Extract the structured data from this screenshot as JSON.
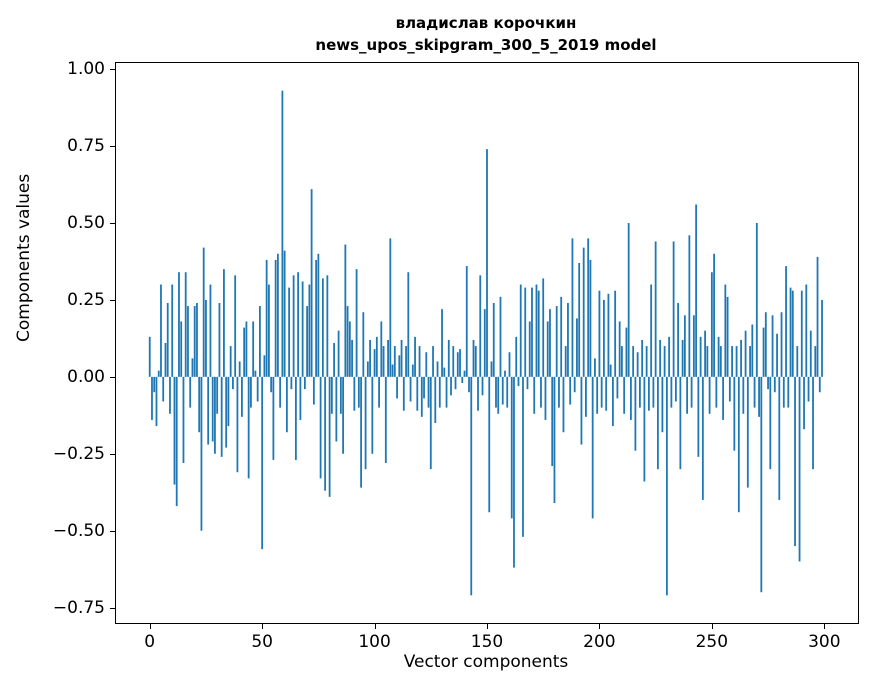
{
  "figure": {
    "title_line1": "владислав корочкин",
    "title_line2": "news_upos_skipgram_300_5_2019 model",
    "xlabel": "Vector components",
    "ylabel": "Components values"
  },
  "chart_data": {
    "type": "bar",
    "title": "владислав корочкин news_upos_skipgram_300_5_2019 model",
    "xlabel": "Vector components",
    "ylabel": "Components values",
    "bar_color": "#1f77b4",
    "grid": false,
    "legend": null,
    "xlim": [
      -15,
      315
    ],
    "ylim": [
      -0.8,
      1.02
    ],
    "xticks": [
      0,
      50,
      100,
      150,
      200,
      250,
      300
    ],
    "xtick_labels": [
      "0",
      "50",
      "100",
      "150",
      "200",
      "250",
      "300"
    ],
    "yticks": [
      1.0,
      0.75,
      0.5,
      0.25,
      0.0,
      -0.25,
      -0.5,
      -0.75
    ],
    "ytick_labels": [
      "1.00",
      "0.75",
      "0.50",
      "0.25",
      "0.00",
      "−0.25",
      "−0.50",
      "−0.75"
    ],
    "x_is_index": true,
    "values": [
      0.13,
      -0.14,
      -0.05,
      -0.16,
      0.02,
      0.3,
      -0.08,
      0.11,
      0.24,
      -0.12,
      0.3,
      -0.35,
      -0.42,
      0.34,
      0.18,
      -0.28,
      0.34,
      0.23,
      -0.1,
      0.06,
      0.23,
      0.24,
      -0.18,
      -0.5,
      0.42,
      0.25,
      -0.22,
      0.3,
      -0.21,
      -0.25,
      -0.12,
      0.24,
      -0.26,
      0.35,
      -0.23,
      -0.16,
      0.1,
      -0.04,
      0.33,
      -0.31,
      0.05,
      -0.13,
      0.16,
      0.18,
      -0.33,
      -0.1,
      0.18,
      0.02,
      -0.08,
      0.23,
      -0.56,
      0.07,
      0.38,
      0.3,
      -0.05,
      -0.27,
      0.38,
      0.4,
      -0.1,
      0.93,
      0.41,
      -0.18,
      0.29,
      -0.04,
      0.33,
      -0.27,
      0.34,
      -0.14,
      0.31,
      -0.04,
      0.23,
      0.3,
      0.61,
      -0.09,
      0.38,
      0.4,
      -0.33,
      0.32,
      -0.37,
      0.33,
      -0.39,
      -0.12,
      0.11,
      -0.21,
      0.15,
      -0.12,
      -0.25,
      0.43,
      0.23,
      0.18,
      0.12,
      -0.11,
      0.35,
      -0.1,
      -0.36,
      0.21,
      -0.3,
      0.05,
      0.12,
      -0.25,
      0.09,
      0.13,
      -0.1,
      0.18,
      0.1,
      -0.28,
      0.12,
      0.45,
      0.04,
      0.1,
      -0.07,
      0.07,
      0.12,
      -0.11,
      0.1,
      0.34,
      -0.08,
      0.04,
      0.13,
      -0.11,
      0.1,
      -0.13,
      -0.07,
      0.08,
      -0.1,
      -0.3,
      0.1,
      -0.15,
      0.05,
      -0.1,
      0.22,
      0.03,
      -0.1,
      0.12,
      -0.06,
      0.1,
      -0.04,
      0.08,
      0.09,
      -0.02,
      0.02,
      0.36,
      -0.05,
      -0.71,
      0.12,
      0.1,
      -0.11,
      0.33,
      -0.06,
      0.22,
      0.74,
      -0.44,
      0.05,
      0.24,
      -0.1,
      -0.12,
      0.26,
      -0.09,
      0.02,
      -0.1,
      0.08,
      -0.46,
      -0.62,
      0.13,
      -0.03,
      0.3,
      -0.52,
      0.29,
      -0.04,
      0.18,
      0.29,
      -0.12,
      0.3,
      0.28,
      -0.1,
      0.32,
      -0.14,
      0.18,
      0.22,
      -0.29,
      -0.41,
      0.23,
      -0.1,
      0.26,
      -0.18,
      0.1,
      0.24,
      -0.09,
      0.45,
      -0.05,
      0.19,
      0.37,
      -0.22,
      0.42,
      -0.13,
      0.45,
      0.38,
      -0.46,
      0.06,
      -0.12,
      0.28,
      -0.1,
      0.25,
      -0.11,
      0.27,
      0.04,
      -0.16,
      0.28,
      -0.07,
      0.18,
      0.1,
      -0.12,
      0.16,
      0.5,
      -0.14,
      0.1,
      -0.24,
      0.08,
      -0.1,
      0.12,
      -0.34,
      0.1,
      -0.11,
      0.3,
      -0.1,
      0.44,
      -0.3,
      0.12,
      -0.18,
      0.1,
      -0.71,
      0.13,
      -0.1,
      0.44,
      -0.08,
      0.24,
      -0.3,
      0.12,
      0.2,
      -0.12,
      0.46,
      -0.1,
      0.2,
      0.56,
      -0.26,
      0.13,
      -0.4,
      0.15,
      0.1,
      -0.12,
      0.34,
      0.4,
      -0.1,
      0.13,
      0.1,
      -0.14,
      0.3,
      0.26,
      -0.08,
      0.1,
      -0.24,
      0.1,
      -0.44,
      0.12,
      -0.12,
      0.15,
      -0.36,
      0.1,
      0.17,
      -0.1,
      0.5,
      -0.13,
      -0.7,
      0.16,
      0.21,
      -0.04,
      -0.3,
      0.2,
      -0.05,
      0.14,
      -0.4,
      0.21,
      -0.1,
      0.36,
      -0.1,
      0.29,
      0.28,
      -0.55,
      0.1,
      -0.6,
      0.28,
      -0.17,
      0.3,
      -0.08,
      0.15,
      -0.3,
      0.1,
      0.39,
      -0.05,
      0.25
    ]
  }
}
